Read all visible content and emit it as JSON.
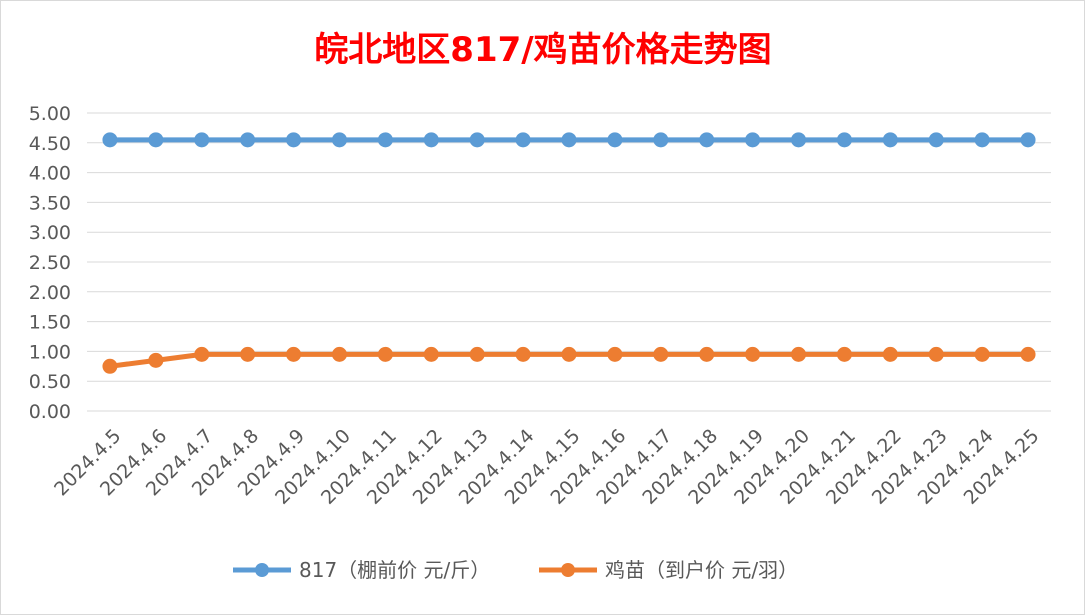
{
  "chart_data": {
    "type": "line",
    "title": "皖北地区817/鸡苗价格走势图",
    "xlabel": "",
    "ylabel": "",
    "categories": [
      "2024.4.5",
      "2024.4.6",
      "2024.4.7",
      "2024.4.8",
      "2024.4.9",
      "2024.4.10",
      "2024.4.11",
      "2024.4.12",
      "2024.4.13",
      "2024.4.14",
      "2024.4.15",
      "2024.4.16",
      "2024.4.17",
      "2024.4.18",
      "2024.4.19",
      "2024.4.20",
      "2024.4.21",
      "2024.4.22",
      "2024.4.23",
      "2024.4.24",
      "2024.4.25"
    ],
    "yticks": [
      "0.00",
      "0.50",
      "1.00",
      "1.50",
      "2.00",
      "2.50",
      "3.00",
      "3.50",
      "4.00",
      "4.50",
      "5.00"
    ],
    "ylim": [
      0,
      5
    ],
    "grid": true,
    "legend_position": "bottom",
    "series": [
      {
        "name": "817（棚前价 元/斤）",
        "color": "#5b9bd5",
        "values": [
          4.55,
          4.55,
          4.55,
          4.55,
          4.55,
          4.55,
          4.55,
          4.55,
          4.55,
          4.55,
          4.55,
          4.55,
          4.55,
          4.55,
          4.55,
          4.55,
          4.55,
          4.55,
          4.55,
          4.55,
          4.55
        ]
      },
      {
        "name": "鸡苗（到户价 元/羽）",
        "color": "#ed7d31",
        "values": [
          0.75,
          0.85,
          0.95,
          0.95,
          0.95,
          0.95,
          0.95,
          0.95,
          0.95,
          0.95,
          0.95,
          0.95,
          0.95,
          0.95,
          0.95,
          0.95,
          0.95,
          0.95,
          0.95,
          0.95,
          0.95
        ]
      }
    ],
    "title_color": "#ff0000"
  }
}
